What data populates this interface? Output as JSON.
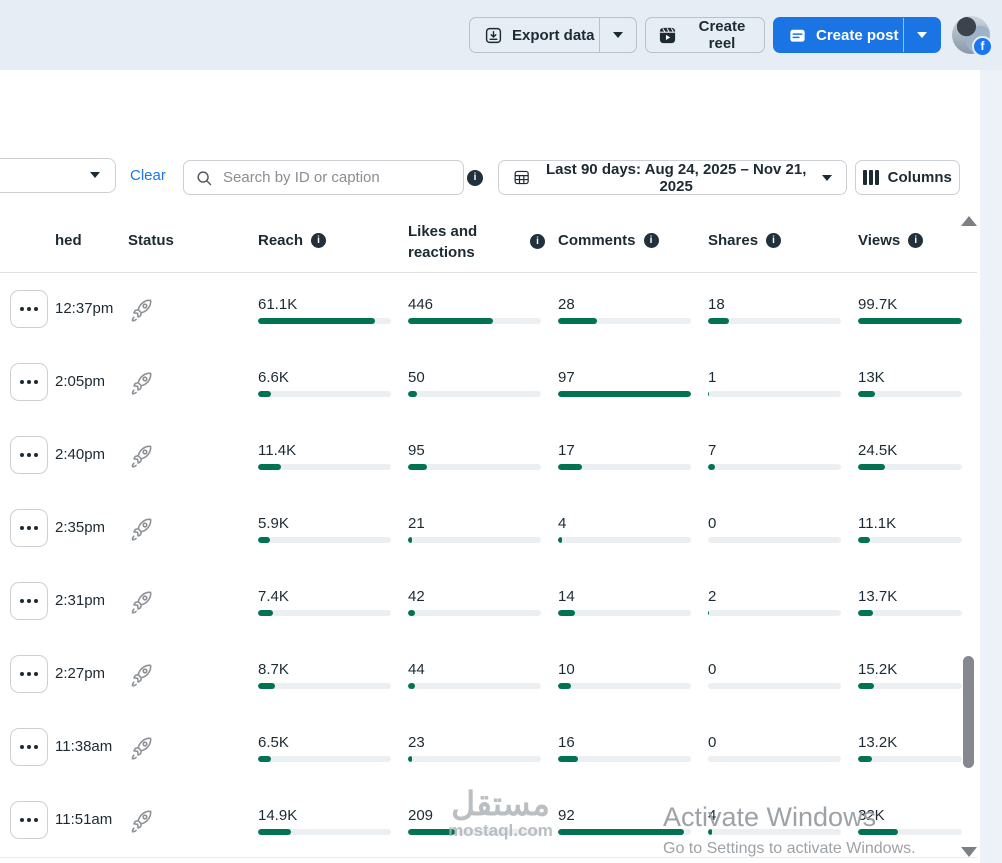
{
  "topbar": {
    "export_label": "Export data",
    "create_reel_label": "Create reel",
    "create_post_label": "Create post"
  },
  "filters": {
    "clear_label": "Clear",
    "search_placeholder": "Search by ID or caption",
    "date_range_label": "Last 90 days: Aug 24, 2025 – Nov 21, 2025",
    "columns_label": "Columns"
  },
  "table": {
    "headers": [
      {
        "label": "hed"
      },
      {
        "label": "Status"
      },
      {
        "label": "Reach",
        "info": true
      },
      {
        "label": "Likes and reactions",
        "info": true
      },
      {
        "label": "Comments",
        "info": true
      },
      {
        "label": "Shares",
        "info": true
      },
      {
        "label": "Views",
        "info": true
      }
    ],
    "rows": [
      {
        "time": "12:37pm",
        "reach": "61.1K",
        "reach_pct": 88,
        "likes": "446",
        "likes_pct": 64,
        "comments": "28",
        "comments_pct": 29,
        "shares": "18",
        "shares_pct": 16,
        "views": "99.7K",
        "views_pct": 100
      },
      {
        "time": "2:05pm",
        "reach": "6.6K",
        "reach_pct": 10,
        "likes": "50",
        "likes_pct": 7,
        "comments": "97",
        "comments_pct": 100,
        "shares": "1",
        "shares_pct": 1,
        "views": "13K",
        "views_pct": 16
      },
      {
        "time": "2:40pm",
        "reach": "11.4K",
        "reach_pct": 17,
        "likes": "95",
        "likes_pct": 14,
        "comments": "17",
        "comments_pct": 18,
        "shares": "7",
        "shares_pct": 5,
        "views": "24.5K",
        "views_pct": 26
      },
      {
        "time": "2:35pm",
        "reach": "5.9K",
        "reach_pct": 9,
        "likes": "21",
        "likes_pct": 3,
        "comments": "4",
        "comments_pct": 3,
        "shares": "0",
        "shares_pct": 0,
        "views": "11.1K",
        "views_pct": 12
      },
      {
        "time": "2:31pm",
        "reach": "7.4K",
        "reach_pct": 11,
        "likes": "42",
        "likes_pct": 5,
        "comments": "14",
        "comments_pct": 13,
        "shares": "2",
        "shares_pct": 1,
        "views": "13.7K",
        "views_pct": 14
      },
      {
        "time": "2:27pm",
        "reach": "8.7K",
        "reach_pct": 13,
        "likes": "44",
        "likes_pct": 5,
        "comments": "10",
        "comments_pct": 10,
        "shares": "0",
        "shares_pct": 0,
        "views": "15.2K",
        "views_pct": 15
      },
      {
        "time": "11:38am",
        "reach": "6.5K",
        "reach_pct": 10,
        "likes": "23",
        "likes_pct": 3,
        "comments": "16",
        "comments_pct": 15,
        "shares": "0",
        "shares_pct": 0,
        "views": "13.2K",
        "views_pct": 13
      },
      {
        "time": "11:51am",
        "reach": "14.9K",
        "reach_pct": 25,
        "likes": "209",
        "likes_pct": 35,
        "comments": "92",
        "comments_pct": 95,
        "shares": "4",
        "shares_pct": 3,
        "views": "32K",
        "views_pct": 38
      }
    ]
  },
  "watermark": {
    "title": "مستقل",
    "domain": "mostaql.com"
  },
  "os_overlay": {
    "line1": "Activate Windows",
    "line2": "Go to Settings to activate Windows."
  },
  "colors": {
    "accent_blue": "#1b74e4",
    "link_blue": "#1877f2",
    "bar_green": "#017252",
    "bar_track": "#eceff1",
    "topbar_bg": "#e6edf5",
    "text_dark": "#1c2b33"
  }
}
